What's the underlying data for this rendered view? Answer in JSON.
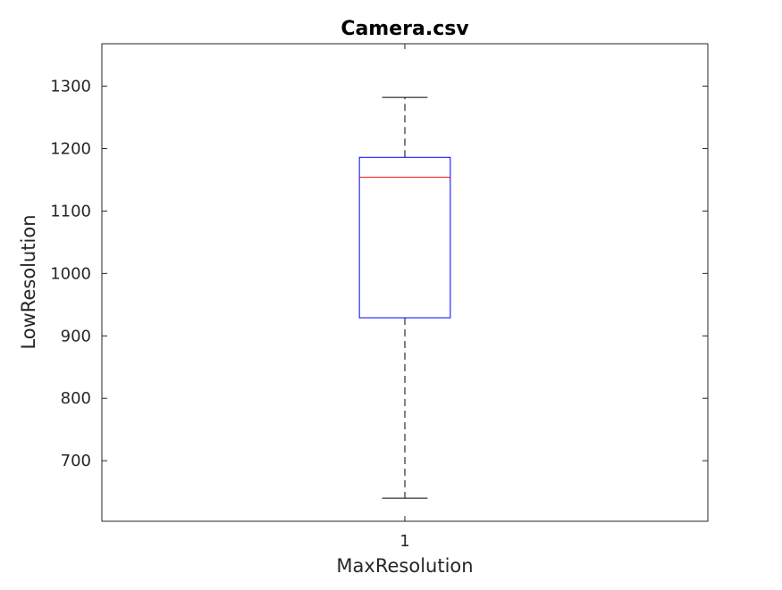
{
  "chart_data": {
    "type": "box",
    "title": "Camera.csv",
    "xlabel": "MaxResolution",
    "ylabel": "LowResolution",
    "categories": [
      "1"
    ],
    "ylim": [
      603,
      1368
    ],
    "yticks": [
      700,
      800,
      900,
      1000,
      1100,
      1200,
      1300
    ],
    "boxes": [
      {
        "category": "1",
        "whisker_low": 640,
        "q1": 929,
        "median": 1154,
        "q3": 1186,
        "whisker_high": 1282
      }
    ],
    "grid": false,
    "colors": {
      "box": "#0000ff",
      "median": "#ff0000",
      "whisker": "#000000",
      "axes": "#262626"
    }
  }
}
